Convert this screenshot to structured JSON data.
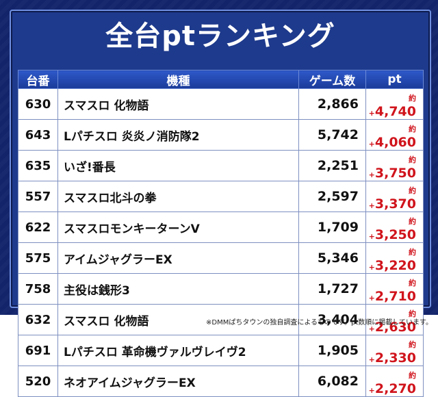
{
  "title": "全台ptランキング",
  "headers": {
    "machine": "台番",
    "name": "機種",
    "games": "ゲーム数",
    "pt": "pt"
  },
  "pt_prefix": "約+",
  "rows": [
    {
      "machine": "630",
      "name": "スマスロ 化物語",
      "games": "2,866",
      "pt": "4,740"
    },
    {
      "machine": "643",
      "name": "Lパチスロ 炎炎ノ消防隊2",
      "games": "5,742",
      "pt": "4,060"
    },
    {
      "machine": "635",
      "name": "いざ!番長",
      "games": "2,251",
      "pt": "3,750"
    },
    {
      "machine": "557",
      "name": "スマスロ北斗の拳",
      "games": "2,597",
      "pt": "3,370"
    },
    {
      "machine": "622",
      "name": "スマスロモンキーターンV",
      "games": "1,709",
      "pt": "3,250"
    },
    {
      "machine": "575",
      "name": "アイムジャグラーEX",
      "games": "5,346",
      "pt": "3,220"
    },
    {
      "machine": "758",
      "name": "主役は銭形3",
      "games": "1,727",
      "pt": "2,710"
    },
    {
      "machine": "632",
      "name": "スマスロ 化物語",
      "games": "3,404",
      "pt": "2,630"
    },
    {
      "machine": "691",
      "name": "Lパチスロ 革命機ヴァルヴレイヴ2",
      "games": "1,905",
      "pt": "2,330"
    },
    {
      "machine": "520",
      "name": "ネオアイムジャグラーEX",
      "games": "6,082",
      "pt": "2,270"
    }
  ],
  "footnote": "※DMMぱちタウンの独自調査によるものです。pt数順に掲載しています。",
  "colors": {
    "frame": "#13246b",
    "panel": "#1e3a8c",
    "header": "#2a52c0",
    "pt_text": "#d0141c"
  }
}
